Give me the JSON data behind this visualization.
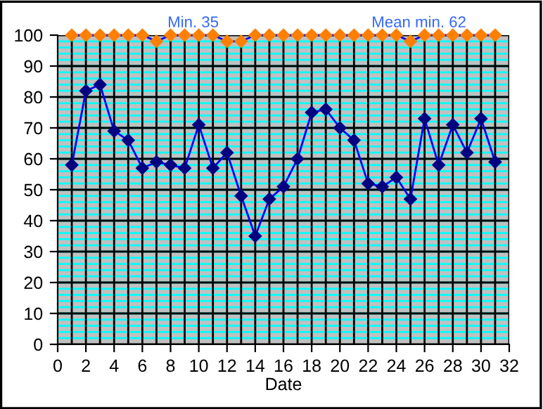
{
  "chart_data": {
    "type": "line",
    "xlabel": "Date",
    "annotations": [
      "Min. 35",
      "Mean min. 62"
    ],
    "series": [
      {
        "color": "#000080",
        "x": [
          1,
          2,
          3,
          4,
          5,
          6,
          7,
          8,
          9,
          10,
          11,
          12,
          13,
          14,
          15,
          16,
          17,
          18,
          19,
          20,
          21,
          22,
          23,
          24,
          25,
          26,
          27,
          28,
          29,
          30,
          31
        ],
        "values": [
          58,
          82,
          84,
          69,
          66,
          57,
          59,
          58,
          57,
          71,
          57,
          62,
          48,
          35,
          47,
          51,
          60,
          75,
          76,
          70,
          66,
          52,
          51,
          54,
          47,
          73,
          58,
          71,
          62,
          73,
          59
        ]
      },
      {
        "color": "#ff8000",
        "x": [
          1,
          2,
          3,
          4,
          5,
          6,
          7,
          8,
          9,
          10,
          11,
          12,
          13,
          14,
          15,
          16,
          17,
          18,
          19,
          20,
          21,
          22,
          23,
          24,
          25,
          26,
          27,
          28,
          29,
          30,
          31
        ],
        "values": [
          100,
          100,
          100,
          100,
          100,
          100,
          98,
          100,
          100,
          100,
          100,
          98,
          98,
          100,
          100,
          100,
          100,
          100,
          100,
          100,
          100,
          100,
          100,
          100,
          98,
          100,
          100,
          100,
          100,
          100,
          100
        ]
      }
    ],
    "xlim": [
      0,
      32
    ],
    "xticks": [
      0,
      2,
      4,
      6,
      8,
      10,
      12,
      14,
      16,
      18,
      20,
      22,
      24,
      26,
      28,
      30,
      32
    ],
    "ylim": [
      0,
      100
    ],
    "yticks": [
      0,
      10,
      20,
      30,
      40,
      50,
      60,
      70,
      80,
      90,
      100
    ],
    "grid": true,
    "marker": "diamond",
    "line_style": "solid",
    "legend": false
  }
}
